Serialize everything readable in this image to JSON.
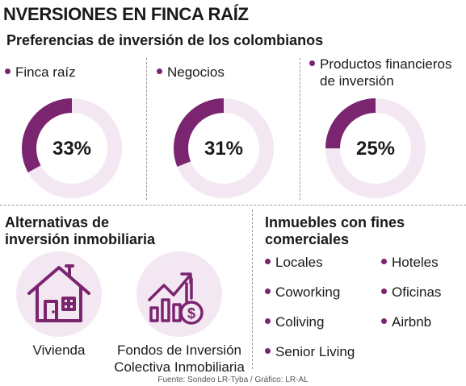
{
  "title": "NVERSIONES EN FINCA RAÍZ",
  "subtitle": "Preferencias de inversión de los colombianos",
  "colors": {
    "accent": "#7b2470",
    "track": "#f3e8f2",
    "icon_bg": "#f3e8f2",
    "dot": "#7b2470"
  },
  "chart_data": {
    "type": "pie",
    "subtitle": "Preferencias de inversión de los colombianos",
    "series": [
      {
        "name": "Finca raíz",
        "label_lines": [
          "Finca raíz"
        ],
        "value": 33,
        "display": "33%"
      },
      {
        "name": "Negocios",
        "label_lines": [
          "Negocios"
        ],
        "value": 31,
        "display": "31%"
      },
      {
        "name": "Productos financieros de inversión",
        "label_lines": [
          "Productos financieros",
          "de inversión"
        ],
        "value": 25,
        "display": "25%"
      }
    ]
  },
  "alternatives": {
    "title_lines": [
      "Alternativas de",
      "inversión inmobiliaria"
    ],
    "items": [
      {
        "icon": "house-icon",
        "label_lines": [
          "Vivienda"
        ]
      },
      {
        "icon": "growth-chart-dollar-icon",
        "label_lines": [
          "Fondos de Inversión",
          "Colectiva Inmobiliaria"
        ]
      }
    ]
  },
  "commercial": {
    "title_lines": [
      "Inmuebles con fines",
      "comerciales"
    ],
    "left_items": [
      "Locales",
      "Coworking",
      "Coliving",
      "Senior Living"
    ],
    "right_items": [
      "Hoteles",
      "Oficinas",
      "Airbnb"
    ]
  },
  "footer": "Fuente: Sondeo LR-Tyba / Gráfico: LR-AL"
}
